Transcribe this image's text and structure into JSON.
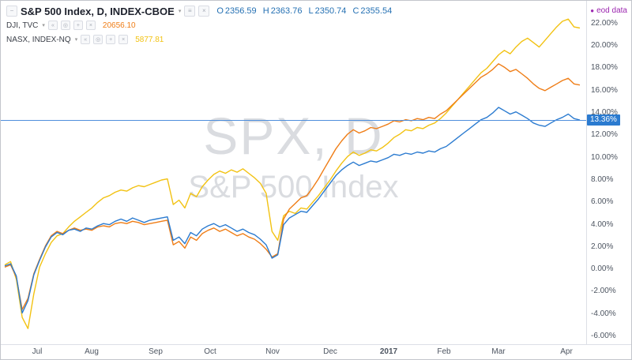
{
  "icons": {
    "collapse": "−",
    "chevron": "▾",
    "menu": "≡",
    "close": "×",
    "prev": "«",
    "style": "◎",
    "plus": "+",
    "dot": "●"
  },
  "colors": {
    "ohlc_text": "#2470b3",
    "axis_text": "#4c5460"
  },
  "header": {
    "main_series": {
      "title": "S&P 500 Index, D, INDEX-CBOE",
      "ohlc": [
        {
          "label": "O",
          "value": "2356.59"
        },
        {
          "label": "H",
          "value": "2363.76"
        },
        {
          "label": "L",
          "value": "2350.74"
        },
        {
          "label": "C",
          "value": "2355.54"
        }
      ]
    },
    "compare_series": [
      {
        "name": "DJI, TVC",
        "value": "20656.10"
      },
      {
        "name": "NASX, INDEX-NQ",
        "value": "5877.81"
      }
    ],
    "eod_badge": {
      "text": "eod data",
      "color": "#9c27b0"
    }
  },
  "watermark": {
    "line1": "SPX, D",
    "line2": "S&P 500 Index"
  },
  "chart_data": {
    "type": "line",
    "title": "S&P 500 Index, D, INDEX-CBOE — percent-change comparison of SPX, DJI and NASX, Jul 2016 to Apr 2017",
    "legend_position": "top-left",
    "grid": false,
    "y_axis": {
      "min": -6.7,
      "max": 24.04,
      "tick_values": [
        22,
        20,
        18,
        16,
        14,
        12,
        10,
        8,
        6,
        4,
        2,
        0,
        -2,
        -4,
        -6
      ],
      "tick_labels": [
        "22.00%",
        "20.00%",
        "18.00%",
        "16.00%",
        "14.00%",
        "12.00%",
        "10.00%",
        "8.00%",
        "6.00%",
        "4.00%",
        "2.00%",
        "0.00%",
        "-2.00%",
        "-4.00%",
        "-6.00%"
      ]
    },
    "x_ticks": [
      {
        "label": "Jul",
        "f": 0.062
      },
      {
        "label": "Aug",
        "f": 0.155
      },
      {
        "label": "Sep",
        "f": 0.265
      },
      {
        "label": "Oct",
        "f": 0.358
      },
      {
        "label": "Nov",
        "f": 0.464
      },
      {
        "label": "Dec",
        "f": 0.563
      },
      {
        "label": "2017",
        "f": 0.663,
        "bold": true
      },
      {
        "label": "Feb",
        "f": 0.757
      },
      {
        "label": "Mar",
        "f": 0.85
      },
      {
        "label": "Apr",
        "f": 0.966
      }
    ],
    "price_line": {
      "value": 13.36,
      "label": "13.36%",
      "line_color": "#4f8fdc",
      "badge_color": "#2b7bd0"
    },
    "series": [
      {
        "name": "SPX",
        "color": "#2b7bd0",
        "values": [
          0.3,
          0.5,
          -0.6,
          -3.9,
          -2.8,
          -0.5,
          0.8,
          2.0,
          2.9,
          3.3,
          3.1,
          3.5,
          3.6,
          3.4,
          3.7,
          3.6,
          3.9,
          4.1,
          4.0,
          4.3,
          4.5,
          4.3,
          4.6,
          4.4,
          4.2,
          4.4,
          4.5,
          4.6,
          4.7,
          2.6,
          2.9,
          2.3,
          3.3,
          3.0,
          3.6,
          3.9,
          4.1,
          3.8,
          4.0,
          3.7,
          3.4,
          3.6,
          3.3,
          3.1,
          2.7,
          2.2,
          1.0,
          1.3,
          4.0,
          4.6,
          4.9,
          5.2,
          5.1,
          5.7,
          6.3,
          7.0,
          7.7,
          8.4,
          8.9,
          9.3,
          9.6,
          9.3,
          9.5,
          9.7,
          9.6,
          9.8,
          10.0,
          10.3,
          10.2,
          10.4,
          10.3,
          10.5,
          10.4,
          10.6,
          10.5,
          10.8,
          11.0,
          11.4,
          11.8,
          12.2,
          12.6,
          13.0,
          13.4,
          13.6,
          14.0,
          14.5,
          14.2,
          13.9,
          14.1,
          13.8,
          13.5,
          13.1,
          12.9,
          12.8,
          13.1,
          13.4,
          13.6,
          13.9,
          13.5,
          13.36
        ]
      },
      {
        "name": "DJI",
        "color": "#ef7d16",
        "values": [
          0.2,
          0.4,
          -0.7,
          -3.6,
          -2.6,
          -0.4,
          0.9,
          2.1,
          3.0,
          3.4,
          3.2,
          3.5,
          3.7,
          3.5,
          3.6,
          3.5,
          3.8,
          3.9,
          3.8,
          4.1,
          4.2,
          4.1,
          4.3,
          4.2,
          4.0,
          4.1,
          4.2,
          4.3,
          4.4,
          2.2,
          2.5,
          1.9,
          2.9,
          2.6,
          3.2,
          3.5,
          3.7,
          3.4,
          3.6,
          3.3,
          3.0,
          3.2,
          2.9,
          2.7,
          2.3,
          1.8,
          1.1,
          1.4,
          4.5,
          5.4,
          5.9,
          6.4,
          6.6,
          7.3,
          8.1,
          9.0,
          9.9,
          10.8,
          11.5,
          12.1,
          12.5,
          12.2,
          12.4,
          12.7,
          12.6,
          12.8,
          13.0,
          13.3,
          13.2,
          13.4,
          13.3,
          13.5,
          13.4,
          13.6,
          13.5,
          13.9,
          14.2,
          14.7,
          15.2,
          15.7,
          16.2,
          16.7,
          17.2,
          17.5,
          17.9,
          18.4,
          18.1,
          17.7,
          17.9,
          17.5,
          17.1,
          16.6,
          16.2,
          16.0,
          16.3,
          16.6,
          16.9,
          17.1,
          16.6,
          16.5
        ]
      },
      {
        "name": "NASX",
        "color": "#f2c212",
        "values": [
          0.4,
          0.7,
          -0.9,
          -4.3,
          -5.3,
          -2.2,
          0.2,
          1.4,
          2.4,
          3.0,
          3.2,
          3.8,
          4.3,
          4.7,
          5.1,
          5.5,
          6.0,
          6.4,
          6.6,
          6.9,
          7.1,
          7.0,
          7.3,
          7.5,
          7.4,
          7.6,
          7.8,
          8.0,
          8.1,
          5.8,
          6.2,
          5.5,
          6.8,
          6.5,
          7.4,
          8.0,
          8.5,
          8.8,
          8.6,
          8.9,
          8.7,
          9.0,
          8.6,
          8.2,
          7.7,
          6.8,
          3.4,
          2.6,
          4.8,
          5.2,
          5.0,
          5.5,
          5.4,
          6.0,
          6.6,
          7.3,
          8.0,
          8.8,
          9.5,
          10.1,
          10.5,
          10.2,
          10.4,
          10.7,
          10.6,
          10.9,
          11.3,
          11.8,
          12.1,
          12.5,
          12.4,
          12.7,
          12.6,
          12.9,
          13.1,
          13.5,
          14.0,
          14.6,
          15.2,
          15.8,
          16.4,
          17.0,
          17.6,
          18.0,
          18.6,
          19.2,
          19.6,
          19.3,
          19.9,
          20.4,
          20.7,
          20.3,
          19.9,
          20.5,
          21.1,
          21.7,
          22.2,
          22.4,
          21.7,
          21.6
        ]
      }
    ]
  }
}
